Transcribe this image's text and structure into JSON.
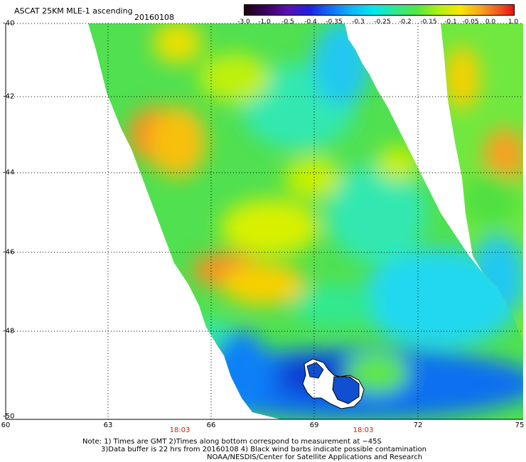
{
  "header": {
    "title": "ASCAT 25KM MLE-1 ascending",
    "date": "20160108"
  },
  "colorbar": {
    "labels": [
      "-3.0",
      "-1.0",
      "-0.5",
      "-0.4",
      "-0.35",
      "-0.3",
      "-0.25",
      "-0.2",
      "-0.15",
      "-0.1",
      "-0.05",
      "0.0",
      "1.0"
    ],
    "colors": [
      "#2a0010",
      "#5a0090",
      "#2020d0",
      "#1060f0",
      "#1090f8",
      "#00c8f8",
      "#20e8c8",
      "#30e070",
      "#70f020",
      "#d0f000",
      "#f8d000",
      "#f89040",
      "#f02020"
    ]
  },
  "axes": {
    "lat_labels": [
      "-40",
      "-42",
      "-44",
      "-46",
      "-48",
      "-50"
    ],
    "lon_labels": [
      "60",
      "63",
      "66",
      "69",
      "72",
      "75"
    ]
  },
  "times": [
    "18:03",
    "18:03"
  ],
  "notes": [
    "Note: 1) Times are GMT 2)Times along bottom correspond to measurement at −45S",
    "3)Data buffer is 22 hrs from 20160108 4) Black wind barbs indicate possible contamination",
    "NOAA/NESDIS/Center for Satellite Applications and Research"
  ]
}
